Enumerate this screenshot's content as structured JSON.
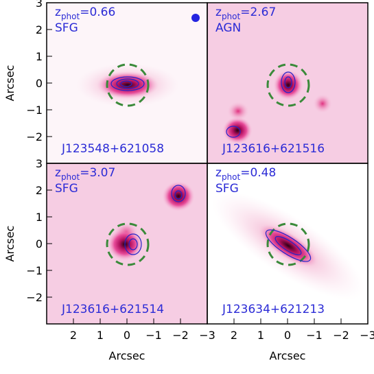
{
  "chart_data": [
    {
      "type": "image",
      "z_symbol": "z",
      "z_subscript": "phot",
      "z_text": "=0.66",
      "class": "SFG",
      "source": "J123548+621058",
      "xlim": [
        3,
        -3
      ],
      "ylim": [
        -3,
        3
      ],
      "yticks": [
        3,
        2,
        1,
        0,
        {
          "value": -1,
          "label": "−1"
        },
        {
          "value": -2,
          "label": "−2"
        }
      ],
      "ylabel": "Arcsec"
    },
    {
      "type": "image",
      "z_symbol": "z",
      "z_subscript": "phot",
      "z_text": "=2.67",
      "class": "AGN",
      "source": "J123616+621516",
      "xlim": [
        3,
        -3
      ],
      "ylim": [
        -3,
        3
      ]
    },
    {
      "type": "image",
      "z_symbol": "z",
      "z_subscript": "phot",
      "z_text": "=3.07",
      "class": "SFG",
      "source": "J123616+621514",
      "xlim": [
        3,
        -3
      ],
      "ylim": [
        -3,
        3
      ],
      "yticks": [
        3,
        2,
        1,
        0,
        {
          "value": -1,
          "label": "−1"
        },
        {
          "value": -2,
          "label": "−2"
        }
      ],
      "ylabel": "Arcsec",
      "xticks": [
        2,
        1,
        0,
        {
          "value": -1,
          "label": "−1"
        },
        {
          "value": -2,
          "label": "−2"
        },
        {
          "value": -3,
          "label": "−3"
        }
      ],
      "xlabel": "Arcsec"
    },
    {
      "type": "image",
      "z_symbol": "z",
      "z_subscript": "phot",
      "z_text": "=0.48",
      "class": "SFG",
      "source": "J123634+621213",
      "xlim": [
        3,
        -3
      ],
      "ylim": [
        -3,
        3
      ],
      "xticks": [
        2,
        1,
        0,
        {
          "value": -1,
          "label": "−1"
        },
        {
          "value": -2,
          "label": "−2"
        },
        {
          "value": -3,
          "label": "−3"
        }
      ],
      "xlabel": "Arcsec"
    }
  ]
}
